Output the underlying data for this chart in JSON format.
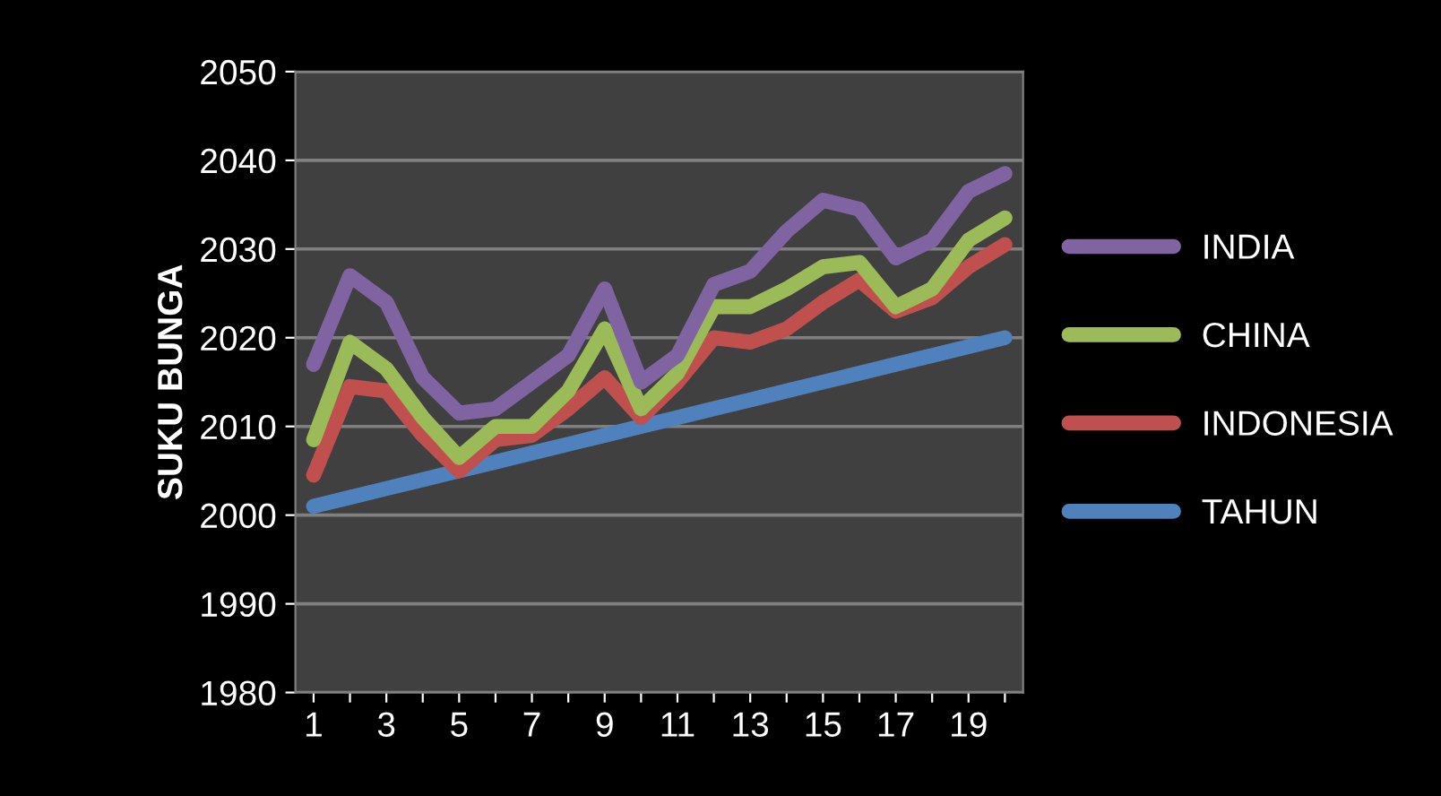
{
  "chart_data": {
    "type": "line",
    "ylabel": "SUKU BUNGA",
    "categories": [
      "1",
      null,
      "3",
      null,
      "5",
      null,
      "7",
      null,
      "9",
      null,
      "11",
      null,
      "13",
      null,
      "15",
      null,
      "17",
      null,
      "19",
      null
    ],
    "series": [
      {
        "name": "INDIA",
        "color": "#8064a2",
        "values": [
          2017,
          2027,
          2024,
          2015.5,
          2011.5,
          2012,
          2015,
          2018,
          2025.5,
          2015,
          2018,
          2026,
          2027.5,
          2032,
          2035.5,
          2034.5,
          2029,
          2031,
          2036.5,
          2038.5
        ]
      },
      {
        "name": "CHINA",
        "color": "#9bbb59",
        "values": [
          2008.5,
          2019.5,
          2016.5,
          2011,
          2006.5,
          2010,
          2010,
          2014,
          2021,
          2012,
          2016,
          2023.5,
          2023.5,
          2025.5,
          2028,
          2028.5,
          2023.5,
          2025.5,
          2031,
          2033.5
        ]
      },
      {
        "name": "INDONESIA",
        "color": "#c0504d",
        "values": [
          2004.5,
          2014.5,
          2014,
          2009,
          2005,
          2008.5,
          2009,
          2012,
          2015.5,
          2011,
          2015,
          2020,
          2019.5,
          2021,
          2024,
          2026.5,
          2023,
          2024.5,
          2028,
          2030.5
        ]
      },
      {
        "name": "TAHUN",
        "color": "#4f81bd",
        "values": [
          2001,
          2002,
          2003,
          2004,
          2005,
          2006,
          2007,
          2008,
          2009,
          2010,
          2011,
          2012,
          2013,
          2014,
          2015,
          2016,
          2017,
          2018,
          2019,
          2020
        ]
      }
    ],
    "ylim": [
      1980,
      2050
    ],
    "yticks": [
      1980,
      1990,
      2000,
      2010,
      2020,
      2030,
      2040,
      2050
    ],
    "grid": "y",
    "legend": "right",
    "marker": "none",
    "line_style": "solid"
  }
}
